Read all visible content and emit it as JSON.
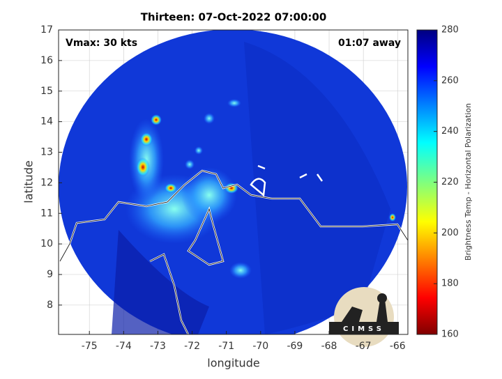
{
  "map": {
    "title": "Thirteen: 07-Oct-2022 07:00:00",
    "xlabel": "longitude",
    "ylabel": "latitude",
    "xlim": [
      -75.9,
      -65.7
    ],
    "ylim": [
      7.04,
      17
    ],
    "xticks": [
      -75,
      -74,
      -73,
      -72,
      -71,
      -70,
      -69,
      -68,
      -67,
      -66
    ],
    "yticks": [
      8,
      9,
      10,
      11,
      12,
      13,
      14,
      15,
      16,
      17
    ],
    "grid": true,
    "annotations": [
      "Vmax: 30 kts",
      "01:07 away"
    ],
    "colorbar": {
      "label": "Brightness Temp - Horizontal Polarization",
      "lim": [
        160,
        280
      ],
      "ticks": [
        160,
        180,
        200,
        220,
        240,
        260,
        280
      ]
    },
    "logo": "CIMSS"
  }
}
